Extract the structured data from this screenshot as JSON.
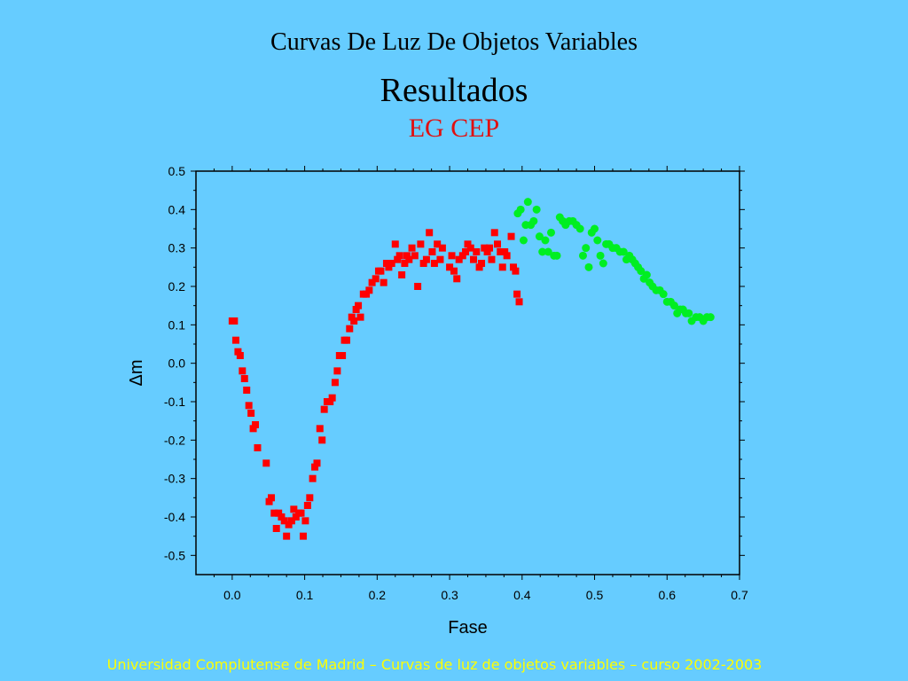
{
  "slide": {
    "title": "Curvas De Luz De Objetos Variables",
    "subtitle": "Resultados",
    "object_name": "EG CEP",
    "footer": "Universidad Complutense de Madrid – Curvas de luz de objetos variables  – curso 2002-2003"
  },
  "colors": {
    "background": "#66ccff",
    "series_red": "#ff0000",
    "series_green": "#00ee22",
    "object_name": "#e01010",
    "footer": "#ffff00"
  },
  "chart_data": {
    "type": "scatter",
    "title": "",
    "xlabel": "Fase",
    "ylabel": "Δm",
    "xlim": [
      -0.05,
      0.7
    ],
    "ylim": [
      -0.55,
      0.5
    ],
    "x_ticks": [
      "0.0",
      "0.1",
      "0.2",
      "0.3",
      "0.4",
      "0.5",
      "0.6",
      "0.7"
    ],
    "y_ticks": [
      "0.5",
      "0.4",
      "0.3",
      "0.2",
      "0.1",
      "0.0",
      "-0.1",
      "-0.2",
      "-0.3",
      "-0.4",
      "-0.5"
    ],
    "grid": false,
    "series": [
      {
        "marker": "square",
        "color": "#ff0000",
        "points": [
          [
            0.0,
            0.11
          ],
          [
            0.003,
            0.11
          ],
          [
            0.005,
            0.06
          ],
          [
            0.008,
            0.03
          ],
          [
            0.011,
            0.02
          ],
          [
            0.014,
            -0.02
          ],
          [
            0.017,
            -0.04
          ],
          [
            0.02,
            -0.07
          ],
          [
            0.023,
            -0.11
          ],
          [
            0.026,
            -0.13
          ],
          [
            0.029,
            -0.17
          ],
          [
            0.032,
            -0.16
          ],
          [
            0.035,
            -0.22
          ],
          [
            0.047,
            -0.26
          ],
          [
            0.051,
            -0.36
          ],
          [
            0.054,
            -0.35
          ],
          [
            0.058,
            -0.39
          ],
          [
            0.061,
            -0.43
          ],
          [
            0.064,
            -0.39
          ],
          [
            0.068,
            -0.4
          ],
          [
            0.072,
            -0.41
          ],
          [
            0.075,
            -0.45
          ],
          [
            0.078,
            -0.42
          ],
          [
            0.082,
            -0.41
          ],
          [
            0.085,
            -0.38
          ],
          [
            0.088,
            -0.4
          ],
          [
            0.092,
            -0.39
          ],
          [
            0.095,
            -0.39
          ],
          [
            0.098,
            -0.45
          ],
          [
            0.101,
            -0.41
          ],
          [
            0.104,
            -0.37
          ],
          [
            0.107,
            -0.35
          ],
          [
            0.111,
            -0.3
          ],
          [
            0.114,
            -0.27
          ],
          [
            0.117,
            -0.26
          ],
          [
            0.121,
            -0.17
          ],
          [
            0.124,
            -0.2
          ],
          [
            0.127,
            -0.12
          ],
          [
            0.131,
            -0.1
          ],
          [
            0.135,
            -0.1
          ],
          [
            0.138,
            -0.09
          ],
          [
            0.142,
            -0.05
          ],
          [
            0.145,
            -0.02
          ],
          [
            0.148,
            0.02
          ],
          [
            0.152,
            0.02
          ],
          [
            0.155,
            0.06
          ],
          [
            0.158,
            0.06
          ],
          [
            0.162,
            0.09
          ],
          [
            0.165,
            0.12
          ],
          [
            0.168,
            0.11
          ],
          [
            0.171,
            0.14
          ],
          [
            0.174,
            0.15
          ],
          [
            0.177,
            0.12
          ],
          [
            0.181,
            0.18
          ],
          [
            0.185,
            0.18
          ],
          [
            0.189,
            0.19
          ],
          [
            0.193,
            0.21
          ],
          [
            0.198,
            0.22
          ],
          [
            0.202,
            0.24
          ],
          [
            0.205,
            0.24
          ],
          [
            0.209,
            0.21
          ],
          [
            0.213,
            0.26
          ],
          [
            0.216,
            0.25
          ],
          [
            0.22,
            0.26
          ],
          [
            0.225,
            0.31
          ],
          [
            0.228,
            0.27
          ],
          [
            0.231,
            0.28
          ],
          [
            0.234,
            0.23
          ],
          [
            0.238,
            0.26
          ],
          [
            0.241,
            0.28
          ],
          [
            0.244,
            0.27
          ],
          [
            0.248,
            0.3
          ],
          [
            0.252,
            0.28
          ],
          [
            0.256,
            0.2
          ],
          [
            0.26,
            0.31
          ],
          [
            0.264,
            0.26
          ],
          [
            0.268,
            0.27
          ],
          [
            0.272,
            0.34
          ],
          [
            0.276,
            0.29
          ],
          [
            0.279,
            0.26
          ],
          [
            0.283,
            0.31
          ],
          [
            0.287,
            0.27
          ],
          [
            0.29,
            0.3
          ],
          [
            0.3,
            0.25
          ],
          [
            0.303,
            0.28
          ],
          [
            0.306,
            0.24
          ],
          [
            0.31,
            0.22
          ],
          [
            0.313,
            0.27
          ],
          [
            0.318,
            0.28
          ],
          [
            0.322,
            0.29
          ],
          [
            0.325,
            0.31
          ],
          [
            0.329,
            0.3
          ],
          [
            0.333,
            0.27
          ],
          [
            0.337,
            0.29
          ],
          [
            0.341,
            0.25
          ],
          [
            0.344,
            0.26
          ],
          [
            0.348,
            0.3
          ],
          [
            0.352,
            0.29
          ],
          [
            0.355,
            0.3
          ],
          [
            0.358,
            0.27
          ],
          [
            0.362,
            0.34
          ],
          [
            0.366,
            0.31
          ],
          [
            0.37,
            0.29
          ],
          [
            0.373,
            0.25
          ],
          [
            0.376,
            0.29
          ],
          [
            0.379,
            0.28
          ],
          [
            0.385,
            0.33
          ],
          [
            0.388,
            0.25
          ],
          [
            0.391,
            0.24
          ],
          [
            0.393,
            0.18
          ],
          [
            0.396,
            0.16
          ]
        ]
      },
      {
        "marker": "circle",
        "color": "#00ee22",
        "points": [
          [
            0.394,
            0.39
          ],
          [
            0.398,
            0.4
          ],
          [
            0.402,
            0.32
          ],
          [
            0.405,
            0.36
          ],
          [
            0.408,
            0.42
          ],
          [
            0.412,
            0.36
          ],
          [
            0.416,
            0.37
          ],
          [
            0.42,
            0.4
          ],
          [
            0.424,
            0.33
          ],
          [
            0.428,
            0.29
          ],
          [
            0.432,
            0.32
          ],
          [
            0.436,
            0.29
          ],
          [
            0.44,
            0.34
          ],
          [
            0.444,
            0.28
          ],
          [
            0.448,
            0.28
          ],
          [
            0.452,
            0.38
          ],
          [
            0.456,
            0.37
          ],
          [
            0.46,
            0.36
          ],
          [
            0.465,
            0.37
          ],
          [
            0.47,
            0.37
          ],
          [
            0.475,
            0.36
          ],
          [
            0.48,
            0.35
          ],
          [
            0.484,
            0.28
          ],
          [
            0.488,
            0.3
          ],
          [
            0.492,
            0.25
          ],
          [
            0.496,
            0.34
          ],
          [
            0.5,
            0.35
          ],
          [
            0.504,
            0.32
          ],
          [
            0.508,
            0.28
          ],
          [
            0.512,
            0.26
          ],
          [
            0.516,
            0.31
          ],
          [
            0.52,
            0.31
          ],
          [
            0.525,
            0.3
          ],
          [
            0.53,
            0.3
          ],
          [
            0.535,
            0.29
          ],
          [
            0.54,
            0.29
          ],
          [
            0.544,
            0.27
          ],
          [
            0.548,
            0.28
          ],
          [
            0.552,
            0.27
          ],
          [
            0.556,
            0.26
          ],
          [
            0.56,
            0.25
          ],
          [
            0.564,
            0.24
          ],
          [
            0.568,
            0.22
          ],
          [
            0.572,
            0.23
          ],
          [
            0.576,
            0.21
          ],
          [
            0.58,
            0.2
          ],
          [
            0.585,
            0.19
          ],
          [
            0.59,
            0.19
          ],
          [
            0.595,
            0.18
          ],
          [
            0.6,
            0.16
          ],
          [
            0.605,
            0.16
          ],
          [
            0.61,
            0.15
          ],
          [
            0.614,
            0.13
          ],
          [
            0.618,
            0.14
          ],
          [
            0.622,
            0.14
          ],
          [
            0.626,
            0.13
          ],
          [
            0.63,
            0.13
          ],
          [
            0.634,
            0.11
          ],
          [
            0.64,
            0.12
          ],
          [
            0.645,
            0.12
          ],
          [
            0.65,
            0.11
          ],
          [
            0.655,
            0.12
          ],
          [
            0.66,
            0.12
          ]
        ]
      }
    ]
  }
}
